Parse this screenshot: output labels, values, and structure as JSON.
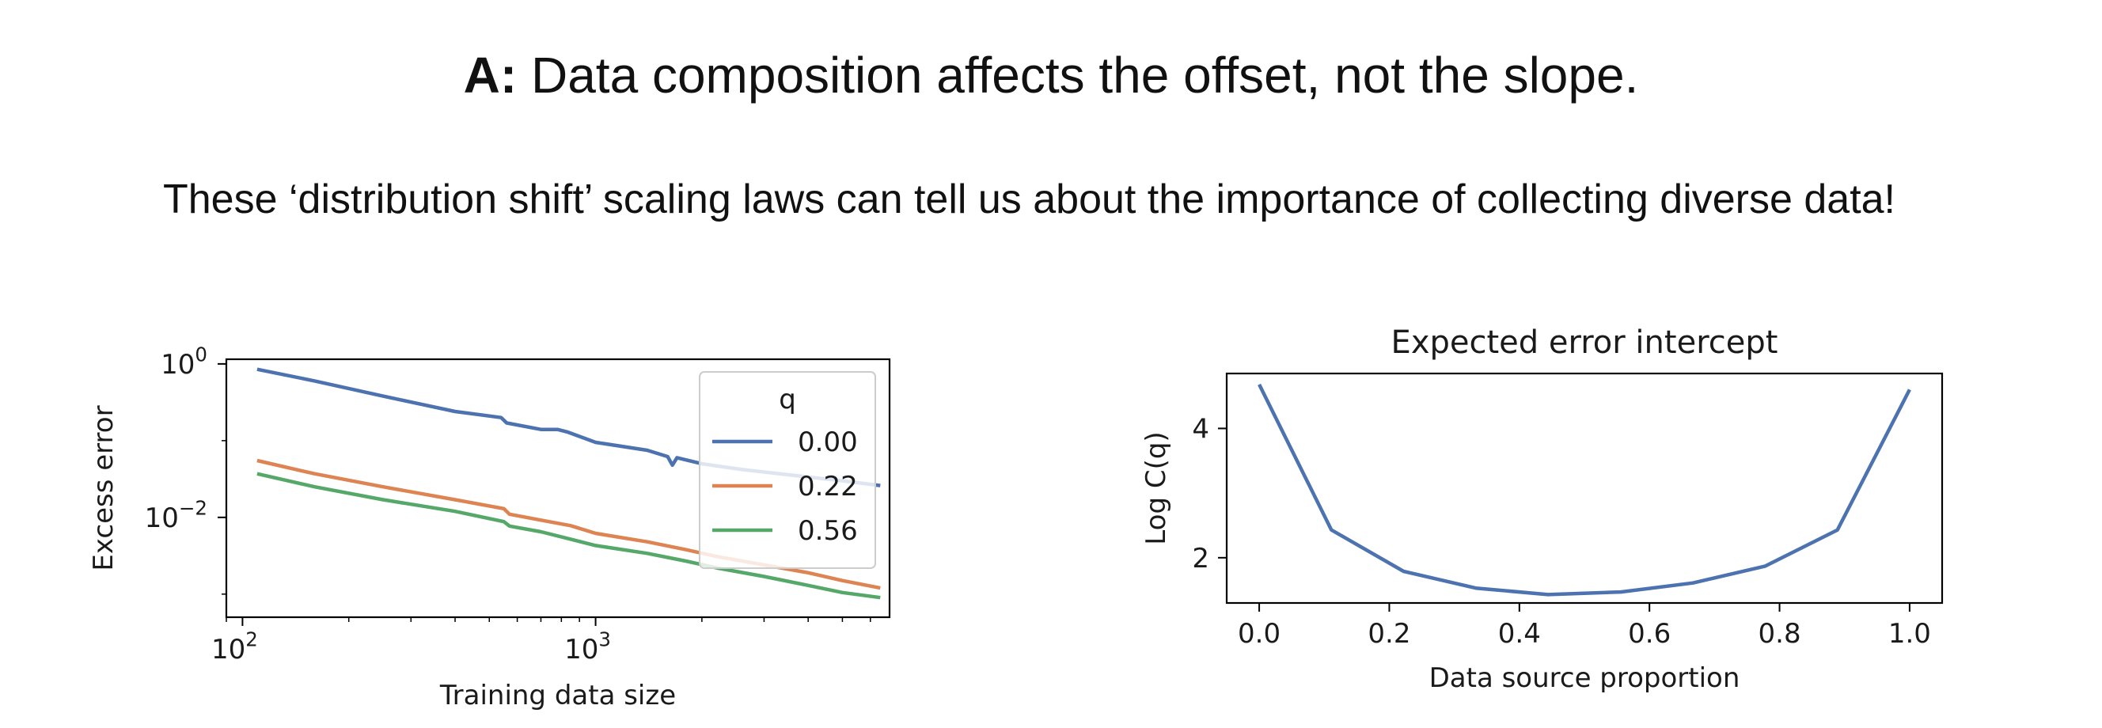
{
  "header": {
    "title_bold": "A:",
    "title_rest": " Data composition affects the offset, not the slope.",
    "subtitle": "These ‘distribution shift’ scaling laws can tell us about the importance of collecting diverse data!"
  },
  "chart_data": [
    {
      "type": "line",
      "title": "",
      "xlabel": "Training data size",
      "ylabel": "Excess error",
      "xscale": "log",
      "yscale": "log",
      "xlim": [
        90,
        6800
      ],
      "ylim": [
        0.0005,
        1.15
      ],
      "x_ticks": [
        {
          "base": "10",
          "exp": "2",
          "value": 100
        },
        {
          "base": "10",
          "exp": "3",
          "value": 1000
        }
      ],
      "y_ticks": [
        {
          "base": "10",
          "exp": "0",
          "value": 1
        },
        {
          "base": "10",
          "exp": "−2",
          "value": 0.01
        }
      ],
      "grid": false,
      "legend": {
        "title": "q",
        "placement": "upper right"
      },
      "series": [
        {
          "name": "0.00",
          "color": "#4c72b0",
          "x": [
            110,
            160,
            250,
            400,
            540,
            560,
            700,
            780,
            830,
            1000,
            1400,
            1600,
            1650,
            1700,
            2000,
            2600,
            3500,
            5000,
            6400
          ],
          "y": [
            0.85,
            0.6,
            0.38,
            0.24,
            0.2,
            0.17,
            0.14,
            0.14,
            0.13,
            0.095,
            0.075,
            0.062,
            0.048,
            0.06,
            0.05,
            0.042,
            0.036,
            0.03,
            0.026
          ]
        },
        {
          "name": "0.22",
          "color": "#dd8452",
          "x": [
            110,
            160,
            250,
            400,
            550,
            570,
            700,
            850,
            1000,
            1400,
            1800,
            2200,
            3000,
            4000,
            5000,
            6400
          ],
          "y": [
            0.055,
            0.037,
            0.025,
            0.017,
            0.013,
            0.011,
            0.0092,
            0.0078,
            0.0062,
            0.0048,
            0.0038,
            0.0031,
            0.0024,
            0.0019,
            0.0015,
            0.0012
          ]
        },
        {
          "name": "0.56",
          "color": "#55a868",
          "x": [
            110,
            160,
            250,
            400,
            550,
            570,
            700,
            850,
            1000,
            1400,
            1800,
            2200,
            3000,
            4000,
            5000,
            6400
          ],
          "y": [
            0.037,
            0.025,
            0.017,
            0.012,
            0.0088,
            0.0077,
            0.0065,
            0.0052,
            0.0043,
            0.0034,
            0.0027,
            0.0022,
            0.0017,
            0.0013,
            0.00105,
            0.0009
          ]
        }
      ]
    },
    {
      "type": "line",
      "title": "Expected error intercept",
      "xlabel": "Data source proportion",
      "ylabel": "Log C(q)",
      "xlim": [
        -0.05,
        1.05
      ],
      "ylim": [
        1.3,
        4.85
      ],
      "x_ticks": [
        "0.0",
        "0.2",
        "0.4",
        "0.6",
        "0.8",
        "1.0"
      ],
      "y_ticks": [
        "2",
        "4"
      ],
      "grid": false,
      "series": [
        {
          "color": "#4c72b0",
          "x": [
            0.0,
            0.111,
            0.222,
            0.333,
            0.444,
            0.556,
            0.667,
            0.778,
            0.889,
            1.0
          ],
          "y": [
            4.68,
            2.43,
            1.79,
            1.53,
            1.43,
            1.47,
            1.61,
            1.87,
            2.43,
            4.6
          ]
        }
      ]
    }
  ]
}
